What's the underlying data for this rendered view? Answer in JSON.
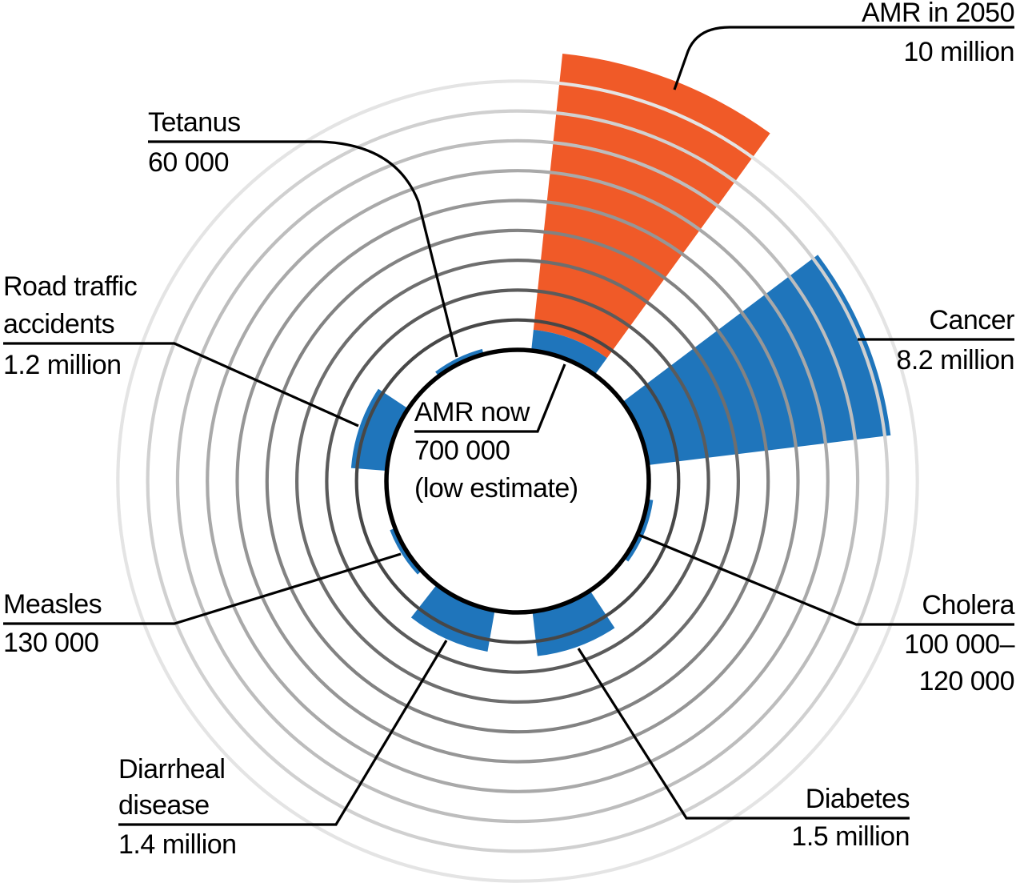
{
  "chart_data": {
    "type": "polar_bar",
    "subject": "Deaths attributable to AMR compared with other major causes of death",
    "rings": {
      "count": 9,
      "value_per_ring_millions": 1,
      "grid": "concentric circles, darker toward center"
    },
    "center_label": {
      "lines": [
        "AMR now",
        "700 000",
        "(low estimate)"
      ]
    },
    "colors": {
      "amr_future": "#F05A28",
      "other_causes": "#1F75BB",
      "grid_inner": "#474747",
      "grid_outer": "#e4e4e4",
      "outline": "#000000"
    },
    "series": [
      {
        "id": "amr-2050",
        "label": "AMR in 2050",
        "value_display": "10 million",
        "value_millions": 10,
        "color": "#F05A28",
        "center_angle_deg": 69,
        "width_deg": 30,
        "stack_inner_millions": 0.7
      },
      {
        "id": "amr-now",
        "label": "AMR now",
        "value_display": "700 000 (low estimate)",
        "value_millions": 0.7,
        "color": "#1F75BB",
        "center_angle_deg": 69,
        "width_deg": 30
      },
      {
        "id": "cancer",
        "label": "Cancer",
        "value_display": "8.2 million",
        "value_millions": 8.2,
        "color": "#1F75BB",
        "center_angle_deg": 22,
        "width_deg": 30
      },
      {
        "id": "cholera",
        "label": "Cholera",
        "value_display": "100 000–120 000",
        "value_millions": 0.11,
        "color": "#1F75BB",
        "center_angle_deg": 338,
        "width_deg": 28
      },
      {
        "id": "diabetes",
        "label": "Diabetes",
        "value_display": "1.5 million",
        "value_millions": 1.5,
        "color": "#1F75BB",
        "center_angle_deg": 290,
        "width_deg": 27
      },
      {
        "id": "diarrheal-disease",
        "label": "Diarrheal disease",
        "value_display": "1.4 million",
        "value_millions": 1.4,
        "color": "#1F75BB",
        "center_angle_deg": 246,
        "width_deg": 28
      },
      {
        "id": "measles",
        "label": "Measles",
        "value_display": "130 000",
        "value_millions": 0.13,
        "color": "#1F75BB",
        "center_angle_deg": 212,
        "width_deg": 22
      },
      {
        "id": "road-traffic-accidents",
        "label": "Road traffic accidents",
        "value_display": "1.2 million",
        "value_millions": 1.2,
        "color": "#1F75BB",
        "center_angle_deg": 161,
        "width_deg": 29
      },
      {
        "id": "tetanus",
        "label": "Tetanus",
        "value_display": "60 000",
        "value_millions": 0.06,
        "color": "#1F75BB",
        "center_angle_deg": 116,
        "width_deg": 22
      }
    ]
  },
  "labels": {
    "amr2050": {
      "lines": [
        "AMR in 2050",
        "10 million"
      ]
    },
    "cancer": {
      "lines": [
        "Cancer",
        "8.2 million"
      ]
    },
    "cholera": {
      "lines": [
        "Cholera",
        "100 000–",
        "120 000"
      ]
    },
    "diabetes": {
      "lines": [
        "Diabetes",
        "1.5 million"
      ]
    },
    "tetanus": {
      "lines": [
        "Tetanus",
        "60 000"
      ]
    },
    "road": {
      "lines": [
        "Road traffic",
        "accidents",
        "1.2 million"
      ]
    },
    "measles": {
      "lines": [
        "Measles",
        "130 000"
      ]
    },
    "diarrheal": {
      "lines": [
        "Diarrheal",
        "disease",
        "1.4 million"
      ]
    },
    "center": {
      "lines": [
        "AMR now",
        "700 000",
        "(low estimate)"
      ]
    }
  }
}
